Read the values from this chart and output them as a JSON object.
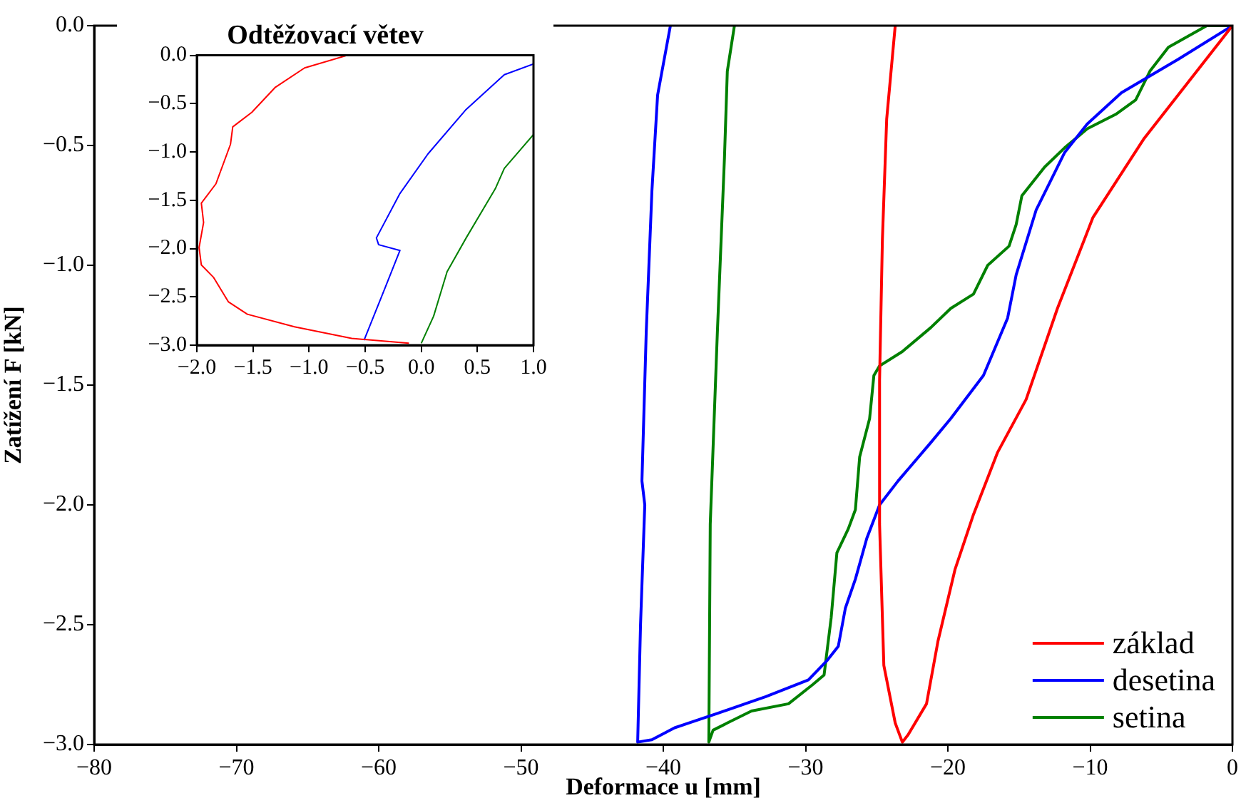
{
  "chart_data": [
    {
      "type": "line",
      "xlabel": "Deformace u [mm]",
      "ylabel": "Zatížení F [kN]",
      "xlim": [
        -80,
        0
      ],
      "ylim": [
        -3,
        0
      ],
      "xticks": [
        {
          "value": -80,
          "label": "−80"
        },
        {
          "value": -70,
          "label": "−70"
        },
        {
          "value": -60,
          "label": "−60"
        },
        {
          "value": -50,
          "label": "−50"
        },
        {
          "value": -40,
          "label": "−40"
        },
        {
          "value": -30,
          "label": "−30"
        },
        {
          "value": -20,
          "label": "−20"
        },
        {
          "value": -10,
          "label": "−10"
        },
        0
      ],
      "yticks": [
        {
          "value": -3,
          "label": "−3.0"
        },
        {
          "value": -2.5,
          "label": "−2.5"
        },
        {
          "value": -2,
          "label": "−2.0"
        },
        {
          "value": -1.5,
          "label": "−1.5"
        },
        {
          "value": -1,
          "label": "−1.0"
        },
        {
          "value": -0.5,
          "label": "−0.5"
        },
        {
          "value": 0,
          "label": "0.0"
        }
      ],
      "grid": false,
      "legend": "bottom right",
      "marker": "none",
      "line_style": "solid",
      "series": [
        {
          "name": "základ",
          "color": "#ff0000",
          "x": [
            0,
            -6.2,
            -9.8,
            -12.3,
            -14.5,
            -16.5,
            -18.2,
            -19.5,
            -20.7,
            -21.5,
            -22.8,
            -23.2,
            -23.7,
            -24.5,
            -24.8,
            -24.8,
            -24.6,
            -24.3,
            -23.7
          ],
          "values": [
            0,
            -0.47,
            -0.8,
            -1.18,
            -1.56,
            -1.78,
            -2.04,
            -2.27,
            -2.57,
            -2.83,
            -2.96,
            -2.99,
            -2.91,
            -2.67,
            -2.08,
            -1.48,
            -0.89,
            -0.39,
            0
          ]
        },
        {
          "name": "desetina",
          "color": "#0000ff",
          "x": [
            0,
            -3.8,
            -7.8,
            -10.2,
            -11.8,
            -13.8,
            -15.2,
            -15.8,
            -17.5,
            -19.8,
            -21.2,
            -23.5,
            -24.8,
            -25.7,
            -26.5,
            -27.2,
            -27.7,
            -28.5,
            -29.8,
            -32.8,
            -36.2,
            -39.2,
            -40.8,
            -41.8,
            -41.6,
            -41.3,
            -41.5,
            -41.2,
            -40.8,
            -40.4,
            -39.5
          ],
          "values": [
            0,
            -0.14,
            -0.28,
            -0.41,
            -0.53,
            -0.77,
            -1.04,
            -1.22,
            -1.46,
            -1.64,
            -1.74,
            -1.9,
            -2.0,
            -2.14,
            -2.31,
            -2.43,
            -2.59,
            -2.65,
            -2.73,
            -2.8,
            -2.87,
            -2.93,
            -2.98,
            -2.99,
            -2.5,
            -2.0,
            -1.9,
            -1.28,
            -0.69,
            -0.29,
            0
          ]
        },
        {
          "name": "setina",
          "color": "#008000",
          "x": [
            0,
            -1.8,
            -4.5,
            -5.8,
            -6.8,
            -8.2,
            -10.2,
            -11.8,
            -13.2,
            -14.8,
            -15.2,
            -15.7,
            -17.2,
            -18.2,
            -19.8,
            -21.2,
            -23.2,
            -24.8,
            -25.2,
            -25.5,
            -26.2,
            -26.5,
            -27.0,
            -27.8,
            -28.2,
            -28.7,
            -29.5,
            -31.2,
            -33.8,
            -35.5,
            -36.5,
            -36.8,
            -36.7,
            -36.2,
            -35.7,
            -35.5,
            -35.0
          ],
          "values": [
            0,
            0,
            -0.09,
            -0.19,
            -0.31,
            -0.37,
            -0.43,
            -0.51,
            -0.59,
            -0.71,
            -0.83,
            -0.92,
            -1.0,
            -1.12,
            -1.18,
            -1.26,
            -1.36,
            -1.42,
            -1.46,
            -1.64,
            -1.8,
            -2.02,
            -2.1,
            -2.2,
            -2.47,
            -2.71,
            -2.75,
            -2.83,
            -2.86,
            -2.91,
            -2.94,
            -2.99,
            -2.08,
            -1.28,
            -0.55,
            -0.19,
            0
          ]
        }
      ]
    },
    {
      "type": "line",
      "title": "Odtěžovací větev",
      "xlim": [
        -2,
        1
      ],
      "ylim": [
        -3,
        0
      ],
      "xticks": [
        {
          "value": -2,
          "label": "−2.0"
        },
        {
          "value": -1.5,
          "label": "−1.5"
        },
        {
          "value": -1,
          "label": "−1.0"
        },
        {
          "value": -0.5,
          "label": "−0.5"
        },
        {
          "value": 0,
          "label": "0.0"
        },
        0.5,
        {
          "value": 1,
          "label": "1.0"
        }
      ],
      "yticks": [
        {
          "value": -3,
          "label": "−3.0"
        },
        {
          "value": -2.5,
          "label": "−2.5"
        },
        {
          "value": -2,
          "label": "−2.0"
        },
        {
          "value": -1.5,
          "label": "−1.5"
        },
        {
          "value": -1,
          "label": "−1.0"
        },
        {
          "value": -0.5,
          "label": "−0.5"
        },
        {
          "value": 0,
          "label": "0.0"
        }
      ],
      "grid": false,
      "marker": "none",
      "line_style": "solid",
      "series": [
        {
          "color": "#ff0000",
          "x": [
            -0.66,
            -1.04,
            -1.3,
            -1.51,
            -1.68,
            -1.7,
            -1.83,
            -1.96,
            -1.94,
            -1.98,
            -1.96,
            -1.85,
            -1.72,
            -1.55,
            -1.13,
            -0.62,
            -0.11
          ],
          "values": [
            0,
            -0.13,
            -0.33,
            -0.59,
            -0.74,
            -0.92,
            -1.33,
            -1.53,
            -1.73,
            -1.99,
            -2.17,
            -2.3,
            -2.55,
            -2.68,
            -2.81,
            -2.93,
            -2.98
          ]
        },
        {
          "color": "#0000ff",
          "x": [
            1.0,
            0.74,
            0.4,
            0.06,
            -0.19,
            -0.4,
            -0.38,
            -0.19,
            -0.32,
            -0.51
          ],
          "values": [
            -0.09,
            -0.2,
            -0.56,
            -1.02,
            -1.43,
            -1.89,
            -1.96,
            -2.02,
            -2.4,
            -2.95
          ]
        },
        {
          "color": "#008000",
          "x": [
            1.0,
            0.74,
            0.66,
            0.4,
            0.23,
            0.11,
            0.0
          ],
          "values": [
            -0.82,
            -1.17,
            -1.38,
            -1.89,
            -2.24,
            -2.7,
            -2.98
          ]
        }
      ]
    }
  ]
}
